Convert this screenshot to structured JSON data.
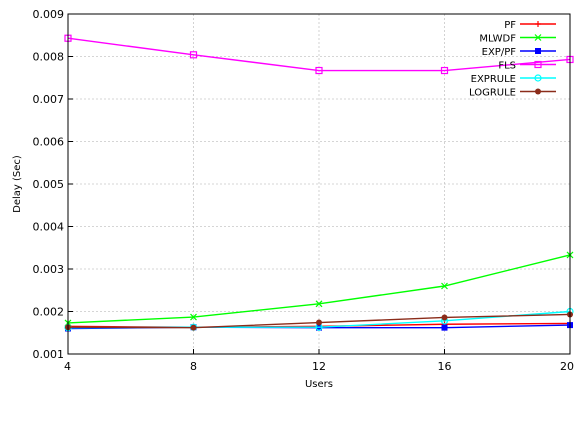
{
  "chart_data": {
    "type": "line",
    "xlabel": "Users",
    "ylabel": "Delay (Sec)",
    "x": [
      4,
      8,
      12,
      16,
      20
    ],
    "xlim": [
      4,
      20
    ],
    "ylim": [
      0.001,
      0.009
    ],
    "x_ticks": [
      "4",
      "8",
      "12",
      "16",
      "20"
    ],
    "y_ticks": [
      "0.001",
      "0.002",
      "0.003",
      "0.004",
      "0.005",
      "0.006",
      "0.007",
      "0.008",
      "0.009"
    ],
    "grid": true,
    "legend_position": "top-right",
    "series": [
      {
        "name": "PF",
        "color": "#ff0000",
        "marker": "plus",
        "values": [
          0.00165,
          0.00163,
          0.00165,
          0.0017,
          0.00172
        ]
      },
      {
        "name": "MLWDF",
        "color": "#00ff00",
        "marker": "cross",
        "values": [
          0.00173,
          0.00187,
          0.00218,
          0.0026,
          0.00333
        ]
      },
      {
        "name": "EXP/PF",
        "color": "#0000ff",
        "marker": "square-filled",
        "values": [
          0.0016,
          0.00163,
          0.00162,
          0.00162,
          0.00168
        ]
      },
      {
        "name": "FLS",
        "color": "#ff00ff",
        "marker": "square-open",
        "values": [
          0.00843,
          0.00804,
          0.00767,
          0.00767,
          0.00793
        ]
      },
      {
        "name": "EXPRULE",
        "color": "#00ffff",
        "marker": "circle",
        "values": [
          0.00162,
          0.00163,
          0.00163,
          0.00178,
          0.002
        ]
      },
      {
        "name": "LOGRULE",
        "color": "#8b2c1a",
        "marker": "circle-filled",
        "values": [
          0.00163,
          0.00162,
          0.00174,
          0.00186,
          0.00193
        ]
      }
    ]
  }
}
